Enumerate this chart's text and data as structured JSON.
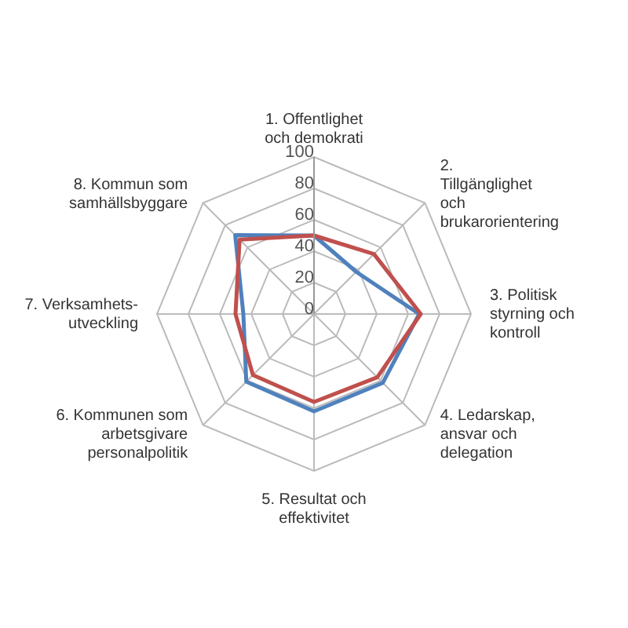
{
  "chart_data": {
    "type": "radar",
    "categories": [
      "1. Offentlighet och demokrati",
      "2. Tillgänglighet och brukarorientering",
      "3. Politisk styrning och kontroll",
      "4. Ledarskap, ansvar och delegation",
      "5. Resultat och effektivitet",
      "6. Kommunen som arbetsgivare personalpolitik",
      "7. Verksamhets-utveckling",
      "8. Kommun som samhällsbyggare"
    ],
    "series": [
      {
        "color": "#4f81bd",
        "values": [
          50,
          38,
          67,
          62,
          62,
          61,
          45,
          71
        ]
      },
      {
        "color": "#c0504d",
        "values": [
          50,
          54,
          68,
          57,
          56,
          55,
          50,
          67
        ]
      }
    ],
    "ylim": [
      0,
      100
    ],
    "yticks": [
      0,
      20,
      40,
      60,
      80,
      100
    ],
    "grid": true,
    "legend": false,
    "marker": "none"
  }
}
